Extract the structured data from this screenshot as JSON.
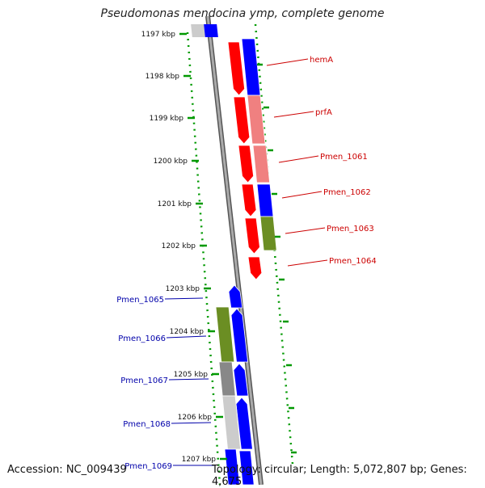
{
  "title": "Pseudomonas mendocina ymp, complete genome",
  "footer": {
    "accession": "Accession: NC_009439",
    "summary": "Topology: circular; Length: 5,072,807 bp; Genes: 4,675"
  },
  "ticks": [
    "1197 kbp",
    "1198 kbp",
    "1199 kbp",
    "1200 kbp",
    "1201 kbp",
    "1202 kbp",
    "1203 kbp",
    "1204 kbp",
    "1205 kbp",
    "1206 kbp",
    "1207 kbp"
  ],
  "right_labels": [
    "hemA",
    "prfA",
    "Pmen_1061",
    "Pmen_1062",
    "Pmen_1063",
    "Pmen_1064"
  ],
  "left_labels": [
    "Pmen_1065",
    "Pmen_1066",
    "Pmen_1067",
    "Pmen_1068",
    "Pmen_1069"
  ],
  "colors": {
    "forward": "#ff0000",
    "reverse": "#0000ff",
    "forward_label": "#cc0000",
    "reverse_label": "#0000aa",
    "tick": "#009900",
    "backbone": "#888888",
    "light_red": "#f08080",
    "olive": "#6b8e23",
    "light_gray": "#cccccc"
  }
}
